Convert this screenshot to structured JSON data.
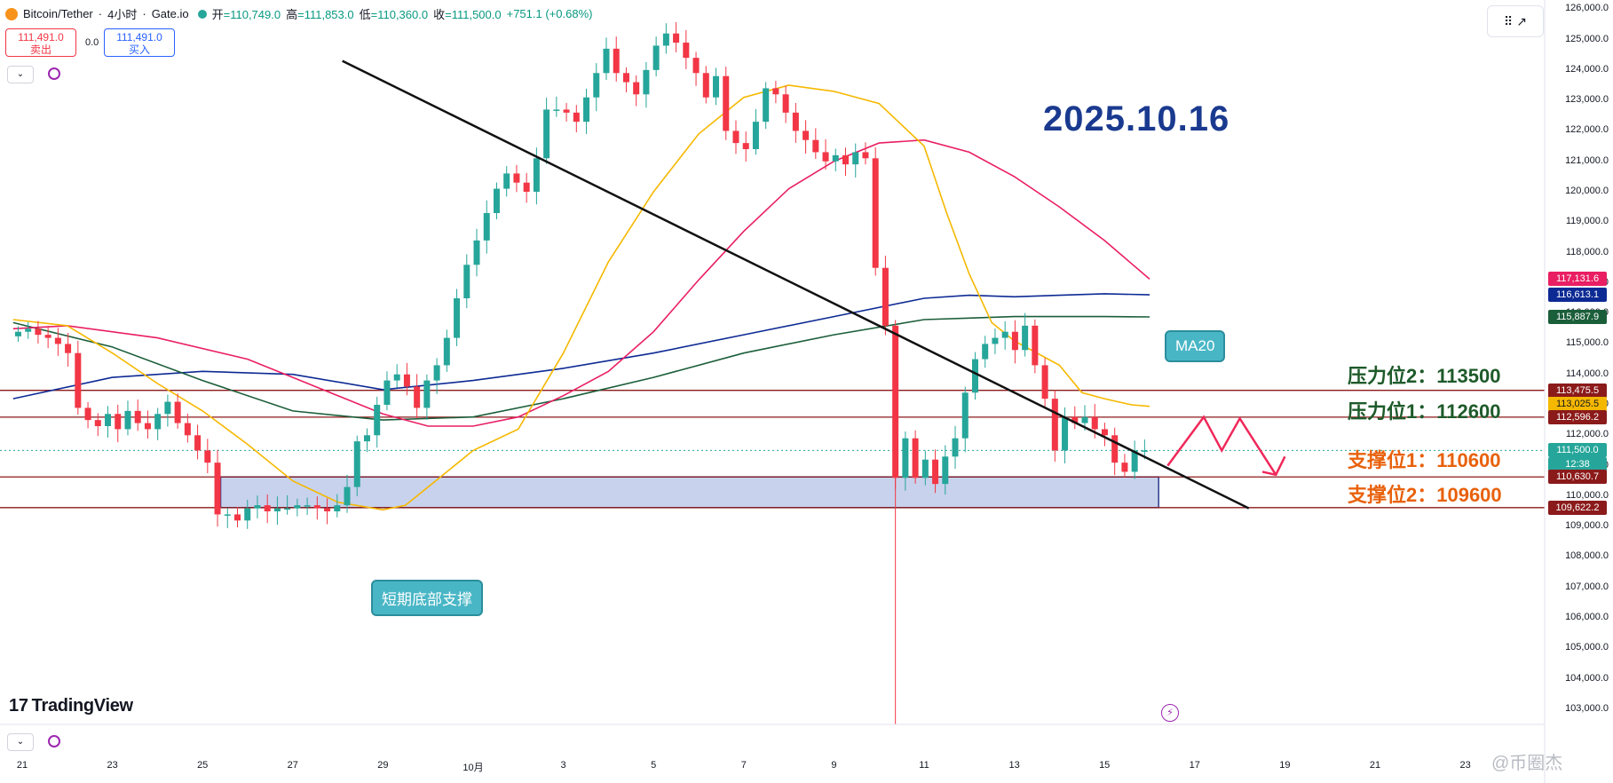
{
  "header": {
    "symbol": "Bitcoin/Tether",
    "sep1": "·",
    "interval": "4小时",
    "sep2": "·",
    "exchange": "Gate.io",
    "open_label": "开",
    "open": "=110,749.0",
    "high_label": "高",
    "high": "=111,853.0",
    "low_label": "低",
    "low": "=110,360.0",
    "close_label": "收",
    "close": "=111,500.0",
    "change": "+751.1 (+0.68%)"
  },
  "trade": {
    "sell_price": "111,491.0",
    "sell_label": "卖出",
    "spread": "0.0",
    "buy_price": "111,491.0",
    "buy_label": "买入"
  },
  "controls": {
    "collapse_top": "⌄",
    "collapse_bottom": "⌄"
  },
  "title_date": "2025.10.16",
  "levels": {
    "res2": "压力位2：113500",
    "res1": "压力位1：112600",
    "sup1": "支撑位1：110600",
    "sup2": "支撑位2：109600"
  },
  "callouts": {
    "ma20": "MA20",
    "bottom_support": "短期底部支撑"
  },
  "brand": {
    "logo_mark": "17",
    "name": "TradingView"
  },
  "watermark": "@币圈杰",
  "colors": {
    "up": "#26a69a",
    "down": "#f23645",
    "ma_yellow": "#f5b800",
    "ma_pink": "#e91e63",
    "ma_navy": "#0d2a94",
    "ma_green": "#1b5e3a",
    "zone": "#c8d2ec",
    "zone_border": "#2a3a8f",
    "level_line": "#8b1a1a",
    "trend": "#111111",
    "arrow": "#f0285a"
  },
  "chart_data": {
    "type": "candlestick",
    "y_axis": {
      "min": 102500,
      "max": 126300,
      "ticks": [
        "126,000.0",
        "125,000.0",
        "124,000.0",
        "123,000.0",
        "122,000.0",
        "121,000.0",
        "120,000.0",
        "119,000.0",
        "118,000.0",
        "117,000.0",
        "116,000.0",
        "115,000.0",
        "114,000.0",
        "113,000.0",
        "112,000.0",
        "111,000.0",
        "110,000.0",
        "109,000.0",
        "108,000.0",
        "107,000.0",
        "106,000.0",
        "105,000.0",
        "104,000.0",
        "103,000.0"
      ],
      "tick_values": [
        126000,
        125000,
        124000,
        123000,
        122000,
        121000,
        120000,
        119000,
        118000,
        117000,
        116000,
        115000,
        114000,
        113000,
        112000,
        111000,
        110000,
        109000,
        108000,
        107000,
        106000,
        105000,
        104000,
        103000
      ]
    },
    "x_axis": {
      "labels": [
        "21",
        "23",
        "25",
        "27",
        "29",
        "10月",
        "3",
        "5",
        "7",
        "9",
        "11",
        "13",
        "15",
        "17",
        "19",
        "21",
        "23"
      ],
      "day_offsets": [
        0,
        2,
        4,
        6,
        8,
        10,
        12,
        14,
        16,
        18,
        20,
        22,
        24,
        26,
        28,
        30,
        32
      ]
    },
    "price_tags": [
      {
        "value": 117131.6,
        "text": "117,131.6",
        "color": "#e91e63"
      },
      {
        "value": 116613.1,
        "text": "116,613.1",
        "color": "#0d2a94"
      },
      {
        "value": 115887.9,
        "text": "115,887.9",
        "color": "#1b5e3a"
      },
      {
        "value": 113475.5,
        "text": "113,475.5",
        "color": "#8b1a1a"
      },
      {
        "value": 113025.5,
        "text": "113,025.5",
        "color": "#f5b800"
      },
      {
        "value": 112596.2,
        "text": "112,596.2",
        "color": "#8b1a1a"
      },
      {
        "value": 111500.0,
        "text": "111,500.0",
        "color": "#26a69a",
        "sub": "12:38"
      },
      {
        "value": 110630.7,
        "text": "110,630.7",
        "color": "#8b1a1a"
      },
      {
        "value": 109622.2,
        "text": "109,622.2",
        "color": "#8b1a1a"
      }
    ],
    "horizontal_levels": [
      113475.5,
      112596.2,
      110630.7,
      109622.2
    ],
    "support_zone": {
      "from": 109622.2,
      "to": 110630.7,
      "x_from_day": 4.4,
      "x_to_day": 25.2
    },
    "trendline": {
      "from": {
        "day": 7.1,
        "price": 124300
      },
      "to": {
        "day": 27.2,
        "price": 109600
      }
    },
    "projection_path": [
      [
        25.4,
        111000
      ],
      [
        26.2,
        112600
      ],
      [
        26.6,
        111500
      ],
      [
        27.0,
        112550
      ],
      [
        27.8,
        110700
      ]
    ],
    "projection_tail": [
      [
        27.5,
        110800
      ],
      [
        27.8,
        110700
      ],
      [
        28.0,
        111300
      ]
    ],
    "candles": [
      [
        110749,
        111853,
        110360,
        111500
      ]
    ],
    "close_series": [
      115400,
      115500,
      115300,
      115200,
      115000,
      114700,
      112900,
      112500,
      112300,
      112700,
      112200,
      112800,
      112400,
      112200,
      112700,
      113100,
      112400,
      112000,
      111500,
      111100,
      109400,
      109400,
      109200,
      109600,
      109700,
      109500,
      109600,
      109600,
      109700,
      109700,
      109600,
      109500,
      109700,
      110300,
      111800,
      112000,
      113000,
      113800,
      114000,
      113600,
      112900,
      113800,
      114300,
      115200,
      116500,
      117600,
      118400,
      119300,
      120100,
      120600,
      120300,
      120000,
      121100,
      122700,
      122700,
      122600,
      122300,
      123100,
      123900,
      124700,
      123900,
      123600,
      123200,
      124000,
      124800,
      125200,
      124900,
      124400,
      123900,
      123100,
      123800,
      122000,
      121600,
      121400,
      122300,
      123400,
      123200,
      122600,
      122000,
      121700,
      121300,
      121000,
      121200,
      120900,
      121300,
      121100,
      117500,
      115600,
      110600,
      111900,
      110600,
      111200,
      110400,
      111300,
      111900,
      113400,
      114500,
      115000,
      115200,
      115400,
      114800,
      115600,
      114300,
      113200,
      111500,
      112600,
      112400,
      112600,
      112200,
      112000,
      111100,
      110800,
      111500,
      111500
    ],
    "ma20_yellow": [
      [
        -0.2,
        115800
      ],
      [
        1,
        115600
      ],
      [
        2,
        114700
      ],
      [
        3,
        113700
      ],
      [
        4,
        112800
      ],
      [
        5,
        111700
      ],
      [
        6,
        110500
      ],
      [
        7,
        109800
      ],
      [
        8,
        109550
      ],
      [
        8.5,
        109700
      ],
      [
        9,
        110300
      ],
      [
        10,
        111500
      ],
      [
        11,
        112200
      ],
      [
        12,
        114700
      ],
      [
        13,
        117700
      ],
      [
        14,
        120000
      ],
      [
        15,
        121900
      ],
      [
        16,
        123100
      ],
      [
        17,
        123500
      ],
      [
        18,
        123300
      ],
      [
        19,
        122900
      ],
      [
        20,
        121500
      ],
      [
        20.5,
        119300
      ],
      [
        21,
        117300
      ],
      [
        21.5,
        115700
      ],
      [
        22,
        115100
      ],
      [
        23,
        114300
      ],
      [
        23.5,
        113400
      ],
      [
        24,
        113200
      ],
      [
        24.6,
        113000
      ],
      [
        25,
        112950
      ]
    ],
    "ma_pink": [
      [
        -0.2,
        115500
      ],
      [
        1,
        115600
      ],
      [
        3,
        115200
      ],
      [
        5,
        114500
      ],
      [
        6,
        113900
      ],
      [
        7,
        113300
      ],
      [
        8,
        112700
      ],
      [
        9,
        112300
      ],
      [
        10,
        112300
      ],
      [
        11,
        112600
      ],
      [
        12,
        113300
      ],
      [
        13,
        114100
      ],
      [
        14,
        115400
      ],
      [
        15,
        117100
      ],
      [
        16,
        118700
      ],
      [
        17,
        120100
      ],
      [
        18,
        121000
      ],
      [
        19,
        121600
      ],
      [
        20,
        121700
      ],
      [
        21,
        121300
      ],
      [
        22,
        120500
      ],
      [
        23,
        119500
      ],
      [
        24,
        118400
      ],
      [
        25,
        117130
      ]
    ],
    "ma_navy": [
      [
        -0.2,
        113200
      ],
      [
        2,
        113900
      ],
      [
        4,
        114100
      ],
      [
        6,
        114000
      ],
      [
        8,
        113500
      ],
      [
        10,
        113800
      ],
      [
        12,
        114200
      ],
      [
        14,
        114700
      ],
      [
        16,
        115300
      ],
      [
        18,
        115900
      ],
      [
        20,
        116500
      ],
      [
        21,
        116600
      ],
      [
        22,
        116550
      ],
      [
        23,
        116600
      ],
      [
        24,
        116650
      ],
      [
        25,
        116613
      ]
    ],
    "ma_green": [
      [
        -0.2,
        115700
      ],
      [
        2,
        114900
      ],
      [
        4,
        113800
      ],
      [
        6,
        112800
      ],
      [
        8,
        112500
      ],
      [
        10,
        112600
      ],
      [
        12,
        113200
      ],
      [
        14,
        113900
      ],
      [
        16,
        114700
      ],
      [
        18,
        115300
      ],
      [
        20,
        115800
      ],
      [
        21,
        115850
      ],
      [
        22,
        115900
      ],
      [
        23,
        115900
      ],
      [
        24,
        115900
      ],
      [
        25,
        115888
      ]
    ]
  }
}
